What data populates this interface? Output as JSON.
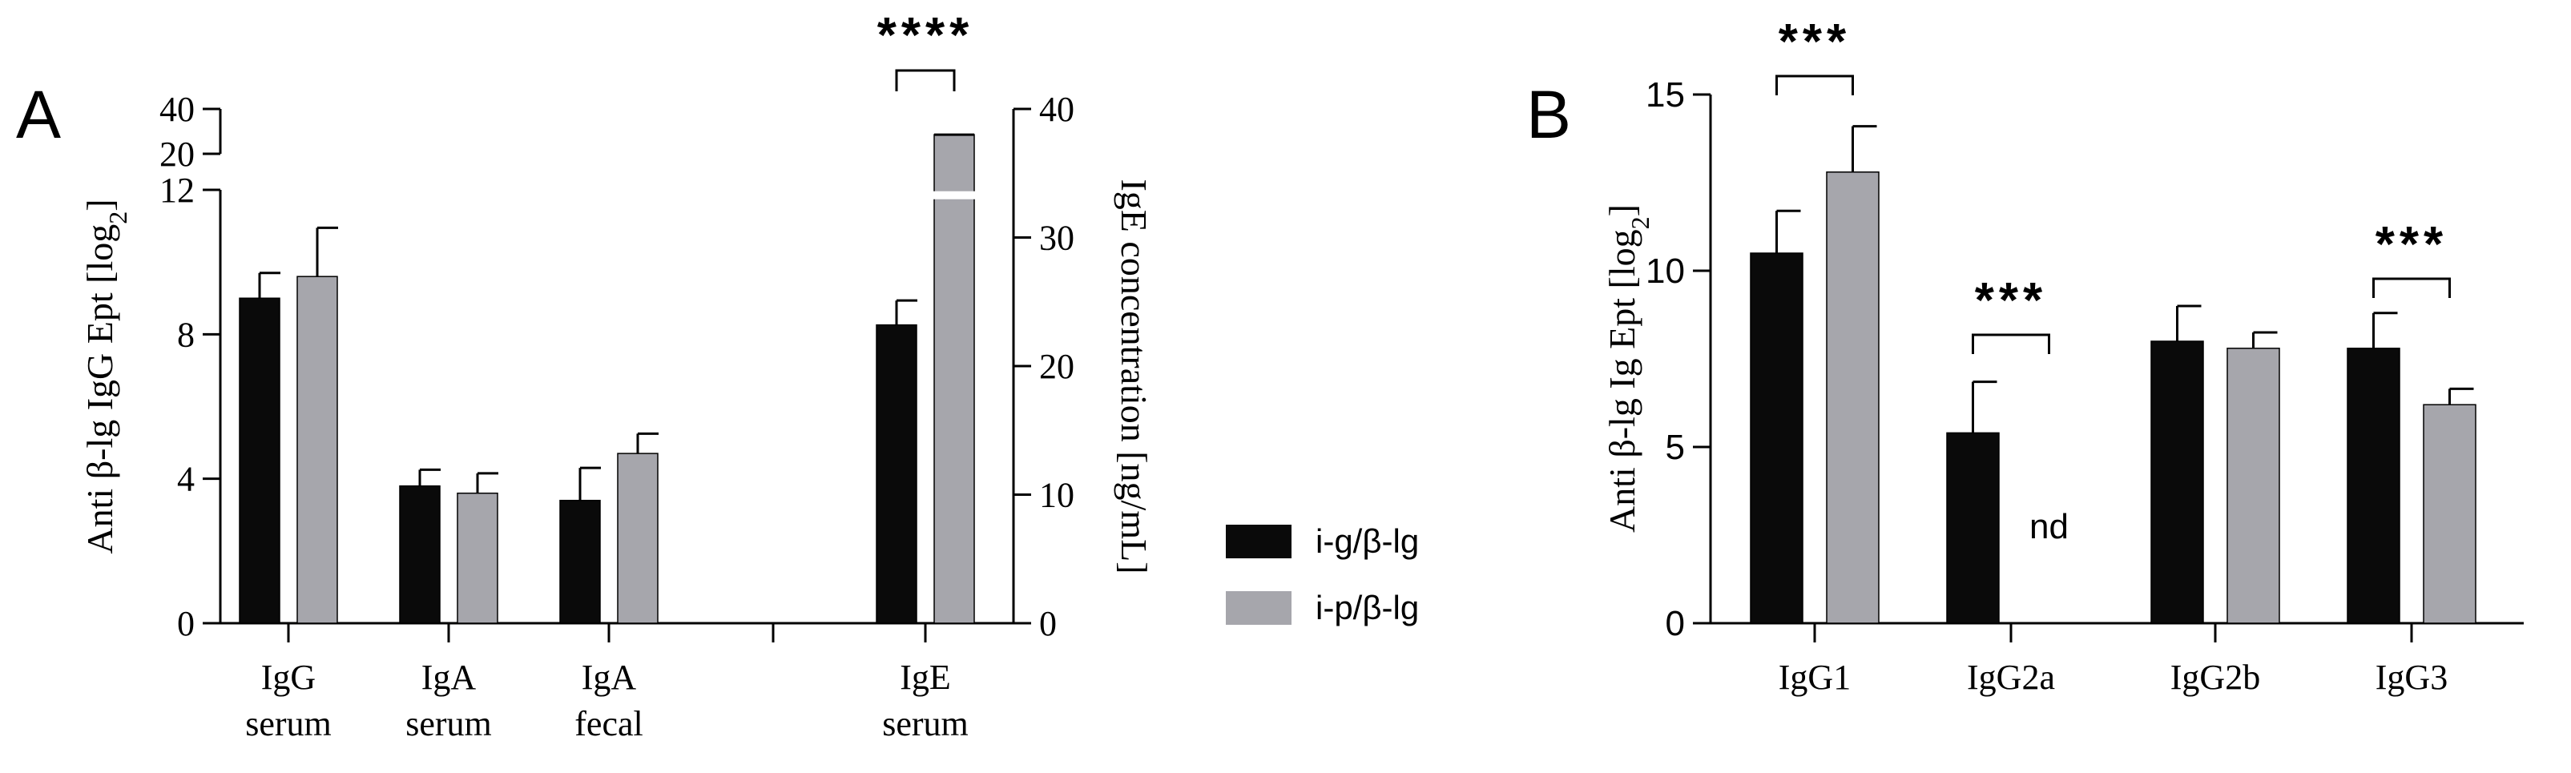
{
  "colors": {
    "group1": "#0a0a0a",
    "group2": "#a6a6ac",
    "axis": "#000000"
  },
  "legend": {
    "placement": "between-panels",
    "items": [
      {
        "label": "i-g/β-lg",
        "color": "#0a0a0a"
      },
      {
        "label": "i-p/β-lg",
        "color": "#a6a6ac"
      }
    ]
  },
  "chart_data": [
    {
      "panel": "A",
      "type": "bar",
      "ylabel_left": "Anti β-lg IgG Ept [log2]",
      "ylabel_right": "IgE concentration [ng/mL]",
      "left_axis": {
        "segments": [
          [
            0,
            12
          ],
          [
            20,
            40
          ]
        ],
        "ticks": [
          "0",
          "4",
          "8",
          "12",
          "20",
          "40"
        ]
      },
      "right_axis": {
        "ylim": [
          0,
          40
        ],
        "ticks": [
          "0",
          "10",
          "20",
          "30",
          "40"
        ]
      },
      "categories": [
        {
          "line1": "IgG",
          "line2": "serum",
          "axis": "left"
        },
        {
          "line1": "IgA",
          "line2": "serum",
          "axis": "left"
        },
        {
          "line1": "IgA",
          "line2": "fecal",
          "axis": "left"
        },
        {
          "line1": "IgE",
          "line2": "serum",
          "axis": "right"
        }
      ],
      "series": [
        {
          "name": "i-g/β-lg",
          "values": [
            9.0,
            3.8,
            3.4,
            23.2
          ],
          "errors": [
            0.7,
            0.45,
            0.9,
            1.9
          ]
        },
        {
          "name": "i-p/β-lg",
          "values": [
            9.6,
            3.6,
            4.7,
            38.0
          ],
          "errors": [
            1.35,
            0.55,
            0.55,
            0.0
          ]
        }
      ],
      "annotations": [
        {
          "label": "****",
          "category": 3
        }
      ]
    },
    {
      "panel": "B",
      "type": "bar",
      "ylabel": "Anti β-lg Ig Ept [log2]",
      "ylim": [
        0,
        15
      ],
      "yticks": [
        "0",
        "5",
        "10",
        "15"
      ],
      "categories": [
        "IgG1",
        "IgG2a",
        "IgG2b",
        "IgG3"
      ],
      "series": [
        {
          "name": "i-g/β-lg",
          "values": [
            10.5,
            5.4,
            8.0,
            7.8
          ],
          "errors": [
            1.2,
            1.45,
            1.0,
            1.0
          ]
        },
        {
          "name": "i-p/β-lg",
          "values": [
            12.8,
            null,
            7.8,
            6.2
          ],
          "errors": [
            1.3,
            null,
            0.45,
            0.45
          ]
        }
      ],
      "annotations": [
        {
          "label": "***",
          "category": 0
        },
        {
          "label": "***",
          "category": 1
        },
        {
          "label": "***",
          "category": 3
        }
      ],
      "value_labels": [
        {
          "label": "nd",
          "category": 1,
          "series": 1
        }
      ]
    }
  ]
}
